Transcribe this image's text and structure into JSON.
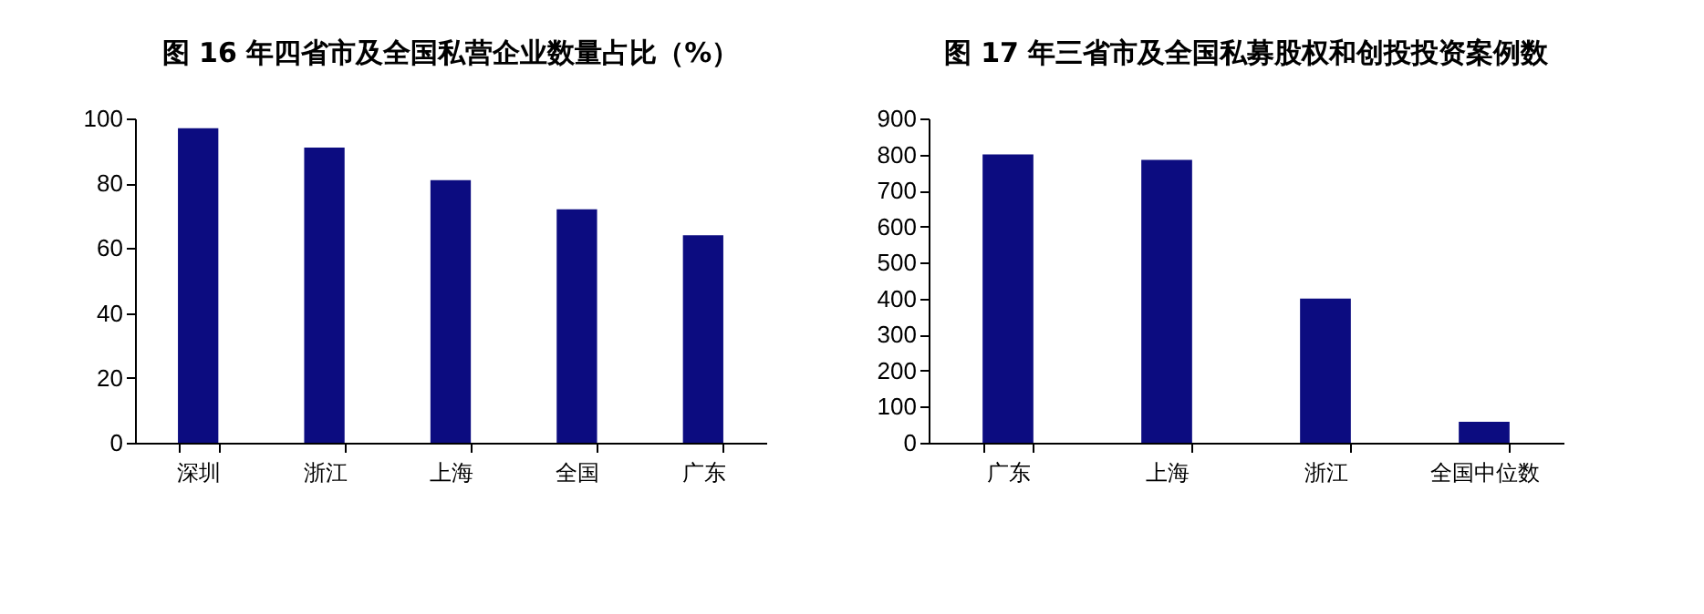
{
  "chart_data": [
    {
      "type": "bar",
      "title": "图 16 年四省市及全国私营企业数量占比（%）",
      "categories": [
        "深圳",
        "浙江",
        "上海",
        "全国",
        "广东"
      ],
      "values": [
        97,
        91,
        81,
        72,
        64
      ],
      "color": "#0c0c80",
      "ylim": [
        0,
        100
      ],
      "yticks": [
        0,
        20,
        40,
        60,
        80,
        100
      ],
      "grid": false
    },
    {
      "type": "bar",
      "title": "图 17 年三省市及全国私募股权和创投投资案例数",
      "categories": [
        "广东",
        "上海",
        "浙江",
        "全国中位数"
      ],
      "values": [
        800,
        785,
        400,
        58
      ],
      "color": "#0c0c80",
      "ylim": [
        0,
        900
      ],
      "yticks": [
        0,
        100,
        200,
        300,
        400,
        500,
        600,
        700,
        800,
        900
      ],
      "grid": false
    }
  ]
}
